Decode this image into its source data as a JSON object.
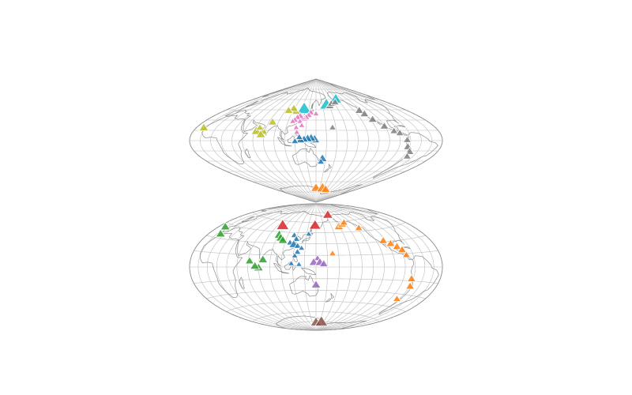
{
  "palette": {
    "graticule": "#bdbdbd",
    "outline": "#8a8a8a",
    "coast": "#8c8c8c",
    "volcano_edge": "#ffffff"
  },
  "maps": [
    {
      "id": "top",
      "projection": "sinusoidal",
      "center_lon": 150,
      "graticule_step_deg": 15,
      "volcanoes": [
        {
          "lon": 125,
          "lat": 48,
          "size": 18,
          "color": "#17becf"
        },
        {
          "lon": 175,
          "lat": 54,
          "size": 17,
          "color": "#17becf"
        },
        {
          "lon": -150,
          "lat": 62,
          "size": 15,
          "color": "#17becf"
        },
        {
          "lon": -178,
          "lat": 52,
          "size": 11,
          "color": "#7f7f7f"
        },
        {
          "lon": -172,
          "lat": 55,
          "size": 10,
          "color": "#7f7f7f"
        },
        {
          "lon": -160,
          "lat": 57,
          "size": 10,
          "color": "#7f7f7f"
        },
        {
          "lon": -123,
          "lat": 45,
          "size": 11,
          "color": "#7f7f7f"
        },
        {
          "lon": -120,
          "lat": 40,
          "size": 11,
          "color": "#7f7f7f"
        },
        {
          "lon": -115,
          "lat": 32,
          "size": 11,
          "color": "#7f7f7f"
        },
        {
          "lon": -105,
          "lat": 22,
          "size": 11,
          "color": "#7f7f7f"
        },
        {
          "lon": -95,
          "lat": 15,
          "size": 10,
          "color": "#7f7f7f"
        },
        {
          "lon": -88,
          "lat": 12,
          "size": 10,
          "color": "#7f7f7f"
        },
        {
          "lon": -80,
          "lat": 2,
          "size": 10,
          "color": "#7f7f7f"
        },
        {
          "lon": -78,
          "lat": -8,
          "size": 11,
          "color": "#7f7f7f"
        },
        {
          "lon": -72,
          "lat": -15,
          "size": 11,
          "color": "#7f7f7f"
        },
        {
          "lon": -70,
          "lat": -22,
          "size": 10,
          "color": "#7f7f7f"
        },
        {
          "lon": 175,
          "lat": 20,
          "size": 9,
          "color": "#7f7f7f"
        },
        {
          "lon": 110,
          "lat": 44,
          "size": 12,
          "color": "#bcbd22"
        },
        {
          "lon": 103,
          "lat": 48,
          "size": 11,
          "color": "#bcbd22"
        },
        {
          "lon": 95,
          "lat": 45,
          "size": 11,
          "color": "#bcbd22"
        },
        {
          "lon": 80,
          "lat": 28,
          "size": 11,
          "color": "#bcbd22"
        },
        {
          "lon": 72,
          "lat": 15,
          "size": 12,
          "color": "#bcbd22"
        },
        {
          "lon": 62,
          "lat": 15,
          "size": 13,
          "color": "#bcbd22"
        },
        {
          "lon": 70,
          "lat": 10,
          "size": 12,
          "color": "#bcbd22"
        },
        {
          "lon": 65,
          "lat": 20,
          "size": 10,
          "color": "#bcbd22"
        },
        {
          "lon": -20,
          "lat": 20,
          "size": 12,
          "color": "#bcbd22"
        },
        {
          "lon": 140,
          "lat": 42,
          "size": 9,
          "color": "#e377c2"
        },
        {
          "lon": 137,
          "lat": 38,
          "size": 9,
          "color": "#e377c2"
        },
        {
          "lon": 133,
          "lat": 35,
          "size": 9,
          "color": "#e377c2"
        },
        {
          "lon": 130,
          "lat": 33,
          "size": 9,
          "color": "#e377c2"
        },
        {
          "lon": 126,
          "lat": 35,
          "size": 9,
          "color": "#e377c2"
        },
        {
          "lon": 122,
          "lat": 37,
          "size": 9,
          "color": "#e377c2"
        },
        {
          "lon": 118,
          "lat": 35,
          "size": 9,
          "color": "#e377c2"
        },
        {
          "lon": 115,
          "lat": 31,
          "size": 9,
          "color": "#e377c2"
        },
        {
          "lon": 112,
          "lat": 29,
          "size": 8,
          "color": "#e377c2"
        },
        {
          "lon": 124,
          "lat": 29,
          "size": 8,
          "color": "#e377c2"
        },
        {
          "lon": 128,
          "lat": 23,
          "size": 8,
          "color": "#e377c2"
        },
        {
          "lon": 120,
          "lat": 20,
          "size": 8,
          "color": "#e377c2"
        },
        {
          "lon": 122,
          "lat": 13,
          "size": 8,
          "color": "#e377c2"
        },
        {
          "lon": 150,
          "lat": 40,
          "size": 8,
          "color": "#e377c2"
        },
        {
          "lon": 148,
          "lat": 3,
          "size": 13,
          "color": "#1f77b4"
        },
        {
          "lon": 143,
          "lat": 5,
          "size": 12,
          "color": "#1f77b4"
        },
        {
          "lon": 138,
          "lat": 4,
          "size": 12,
          "color": "#1f77b4"
        },
        {
          "lon": 133,
          "lat": 3,
          "size": 11,
          "color": "#1f77b4"
        },
        {
          "lon": 128,
          "lat": 2,
          "size": 11,
          "color": "#1f77b4"
        },
        {
          "lon": 126,
          "lat": 6,
          "size": 9,
          "color": "#1f77b4"
        },
        {
          "lon": 120,
          "lat": 0,
          "size": 9,
          "color": "#1f77b4"
        },
        {
          "lon": 160,
          "lat": -25,
          "size": 12,
          "color": "#1f77b4"
        },
        {
          "lon": 158,
          "lat": -30,
          "size": 9,
          "color": "#1f77b4"
        },
        {
          "lon": 150,
          "lat": -68,
          "size": 13,
          "color": "#ff7f0e"
        },
        {
          "lon": 175,
          "lat": -68,
          "size": 15,
          "color": "#ff7f0e"
        },
        {
          "lon": 190,
          "lat": -70,
          "size": 12,
          "color": "#ff7f0e"
        }
      ]
    },
    {
      "id": "bottom",
      "projection": "hammer",
      "center_lon": 150,
      "graticule_step_deg": 15,
      "volcanoes": [
        {
          "lon": 82,
          "lat": 55,
          "size": 16,
          "color": "#d62728"
        },
        {
          "lon": 148,
          "lat": 57,
          "size": 15,
          "color": "#d62728"
        },
        {
          "lon": -170,
          "lat": 72,
          "size": 13,
          "color": "#d62728"
        },
        {
          "lon": 90,
          "lat": 42,
          "size": 13,
          "color": "#2ca02c"
        },
        {
          "lon": 95,
          "lat": 38,
          "size": 12,
          "color": "#2ca02c"
        },
        {
          "lon": 100,
          "lat": 35,
          "size": 12,
          "color": "#2ca02c"
        },
        {
          "lon": 80,
          "lat": 10,
          "size": 12,
          "color": "#2ca02c"
        },
        {
          "lon": 75,
          "lat": 0,
          "size": 12,
          "color": "#2ca02c"
        },
        {
          "lon": 70,
          "lat": 2,
          "size": 12,
          "color": "#2ca02c"
        },
        {
          "lon": 62,
          "lat": 8,
          "size": 11,
          "color": "#2ca02c"
        },
        {
          "lon": -10,
          "lat": 35,
          "size": 12,
          "color": "#2ca02c"
        },
        {
          "lon": 115,
          "lat": 42,
          "size": 9,
          "color": "#1f77b4"
        },
        {
          "lon": 120,
          "lat": 37,
          "size": 9,
          "color": "#1f77b4"
        },
        {
          "lon": 112,
          "lat": 32,
          "size": 9,
          "color": "#1f77b4"
        },
        {
          "lon": 118,
          "lat": 30,
          "size": 12,
          "color": "#1f77b4"
        },
        {
          "lon": 124,
          "lat": 28,
          "size": 9,
          "color": "#1f77b4"
        },
        {
          "lon": 130,
          "lat": 25,
          "size": 8,
          "color": "#1f77b4"
        },
        {
          "lon": 125,
          "lat": 20,
          "size": 9,
          "color": "#1f77b4"
        },
        {
          "lon": 122,
          "lat": 15,
          "size": 8,
          "color": "#1f77b4"
        },
        {
          "lon": 118,
          "lat": 5,
          "size": 8,
          "color": "#1f77b4"
        },
        {
          "lon": 128,
          "lat": 4,
          "size": 8,
          "color": "#1f77b4"
        },
        {
          "lon": 138,
          "lat": 44,
          "size": 8,
          "color": "#1f77b4"
        },
        {
          "lon": 152,
          "lat": 12,
          "size": 9,
          "color": "#9467bd"
        },
        {
          "lon": 147,
          "lat": 7,
          "size": 12,
          "color": "#9467bd"
        },
        {
          "lon": 155,
          "lat": 7,
          "size": 12,
          "color": "#9467bd"
        },
        {
          "lon": 160,
          "lat": 5,
          "size": 11,
          "color": "#9467bd"
        },
        {
          "lon": 150,
          "lat": -22,
          "size": 12,
          "color": "#9467bd"
        },
        {
          "lon": -165,
          "lat": 54,
          "size": 12,
          "color": "#ff7f0e"
        },
        {
          "lon": -155,
          "lat": 57,
          "size": 11,
          "color": "#ff7f0e"
        },
        {
          "lon": -148,
          "lat": 59,
          "size": 10,
          "color": "#ff7f0e"
        },
        {
          "lon": -130,
          "lat": 50,
          "size": 10,
          "color": "#ff7f0e"
        },
        {
          "lon": -108,
          "lat": 32,
          "size": 11,
          "color": "#ff7f0e"
        },
        {
          "lon": -100,
          "lat": 28,
          "size": 11,
          "color": "#ff7f0e"
        },
        {
          "lon": -93,
          "lat": 24,
          "size": 11,
          "color": "#ff7f0e"
        },
        {
          "lon": -88,
          "lat": 20,
          "size": 11,
          "color": "#ff7f0e"
        },
        {
          "lon": -85,
          "lat": 14,
          "size": 10,
          "color": "#ff7f0e"
        },
        {
          "lon": -78,
          "lat": -12,
          "size": 11,
          "color": "#ff7f0e"
        },
        {
          "lon": -75,
          "lat": -20,
          "size": 11,
          "color": "#ff7f0e"
        },
        {
          "lon": -80,
          "lat": -35,
          "size": 10,
          "color": "#ff7f0e"
        },
        {
          "lon": 172,
          "lat": 18,
          "size": 9,
          "color": "#ff7f0e"
        },
        {
          "lon": -20,
          "lat": 42,
          "size": 12,
          "color": "#2ca02c"
        },
        {
          "lon": 150,
          "lat": -75,
          "size": 14,
          "color": "#8c564b"
        },
        {
          "lon": 170,
          "lat": -74,
          "size": 16,
          "color": "#8c564b"
        }
      ]
    }
  ]
}
